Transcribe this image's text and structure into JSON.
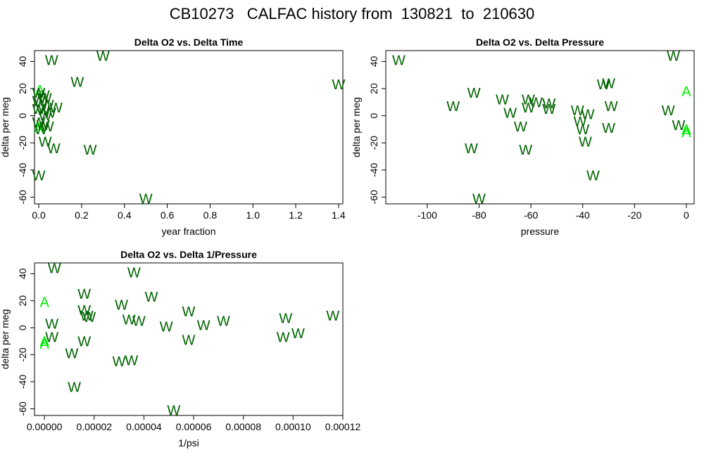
{
  "figure_title": "CB10273   CALFAC history from  130821  to  210630",
  "chart_data": [
    {
      "type": "scatter",
      "title": "Delta O2 vs. Delta Time",
      "xlabel": "year fraction",
      "ylabel": "delta per meg",
      "xlim": [
        -0.02,
        1.42
      ],
      "ylim": [
        -65,
        48
      ],
      "xticks": [
        "0.0",
        "0.2",
        "0.4",
        "0.6",
        "0.8",
        "1.0",
        "1.2",
        "1.4"
      ],
      "xtick_values": [
        0,
        0.2,
        0.4,
        0.6,
        0.8,
        1.0,
        1.2,
        1.4
      ],
      "yticks": [
        "-60",
        "-40",
        "-20",
        "0",
        "20",
        "40"
      ],
      "ytick_values": [
        -60,
        -40,
        -20,
        0,
        20,
        40
      ],
      "grid": false,
      "points": [
        {
          "x": 0.3,
          "y": 44,
          "label": "W"
        },
        {
          "x": 0.06,
          "y": 41,
          "label": "W"
        },
        {
          "x": 0.18,
          "y": 25,
          "label": "W"
        },
        {
          "x": 1.4,
          "y": 23,
          "label": "W"
        },
        {
          "x": 0.005,
          "y": 19,
          "label": "A"
        },
        {
          "x": 0.0,
          "y": 17,
          "label": "W"
        },
        {
          "x": 0.02,
          "y": 15,
          "label": "W"
        },
        {
          "x": 0.03,
          "y": 13,
          "label": "W"
        },
        {
          "x": 0.0,
          "y": 11,
          "label": "W"
        },
        {
          "x": 0.01,
          "y": 9,
          "label": "W"
        },
        {
          "x": 0.04,
          "y": 8,
          "label": "W"
        },
        {
          "x": 0.08,
          "y": 6,
          "label": "W"
        },
        {
          "x": 0.0,
          "y": 5,
          "label": "W"
        },
        {
          "x": 0.02,
          "y": 4,
          "label": "W"
        },
        {
          "x": 0.05,
          "y": 2,
          "label": "W"
        },
        {
          "x": 0.03,
          "y": 0,
          "label": "W"
        },
        {
          "x": 0.0,
          "y": -5,
          "label": "W"
        },
        {
          "x": 0.02,
          "y": -7,
          "label": "W"
        },
        {
          "x": 0.04,
          "y": -8,
          "label": "W"
        },
        {
          "x": 0.0,
          "y": -9,
          "label": "A"
        },
        {
          "x": 0.01,
          "y": -10,
          "label": "W"
        },
        {
          "x": 0.03,
          "y": -19,
          "label": "W"
        },
        {
          "x": 0.07,
          "y": -24,
          "label": "W"
        },
        {
          "x": 0.24,
          "y": -25,
          "label": "W"
        },
        {
          "x": 0.0,
          "y": -44,
          "label": "W"
        },
        {
          "x": 0.5,
          "y": -61,
          "label": "W"
        }
      ]
    },
    {
      "type": "scatter",
      "title": "Delta O2 vs. Delta Pressure",
      "xlabel": "pressure",
      "ylabel": "delta per meg",
      "xlim": [
        -116,
        3
      ],
      "ylim": [
        -65,
        48
      ],
      "xticks": [
        "-100",
        "-80",
        "-60",
        "-40",
        "-20",
        "0"
      ],
      "xtick_values": [
        -100,
        -80,
        -60,
        -40,
        -20,
        0
      ],
      "yticks": [
        "-60",
        "-40",
        "-20",
        "0",
        "20",
        "40"
      ],
      "ytick_values": [
        -60,
        -40,
        -20,
        0,
        20,
        40
      ],
      "grid": false,
      "points": [
        {
          "x": -111,
          "y": 41,
          "label": "W"
        },
        {
          "x": -5,
          "y": 44,
          "label": "W"
        },
        {
          "x": -32,
          "y": 23,
          "label": "W"
        },
        {
          "x": -30,
          "y": 24,
          "label": "W"
        },
        {
          "x": 0,
          "y": 18,
          "label": "A"
        },
        {
          "x": -82,
          "y": 17,
          "label": "W"
        },
        {
          "x": -71,
          "y": 12,
          "label": "W"
        },
        {
          "x": -61,
          "y": 12,
          "label": "W"
        },
        {
          "x": -58,
          "y": 10,
          "label": "W"
        },
        {
          "x": -53,
          "y": 9,
          "label": "W"
        },
        {
          "x": -90,
          "y": 7,
          "label": "W"
        },
        {
          "x": -61,
          "y": 6,
          "label": "W"
        },
        {
          "x": -53,
          "y": 5,
          "label": "W"
        },
        {
          "x": -29,
          "y": 7,
          "label": "W"
        },
        {
          "x": -42,
          "y": 4,
          "label": "W"
        },
        {
          "x": -7,
          "y": 4,
          "label": "W"
        },
        {
          "x": -68,
          "y": 2,
          "label": "W"
        },
        {
          "x": -38,
          "y": 1,
          "label": "W"
        },
        {
          "x": -41,
          "y": -4,
          "label": "W"
        },
        {
          "x": -64,
          "y": -8,
          "label": "W"
        },
        {
          "x": -30,
          "y": -9,
          "label": "W"
        },
        {
          "x": -3,
          "y": -7,
          "label": "W"
        },
        {
          "x": -40,
          "y": -10,
          "label": "W"
        },
        {
          "x": 0,
          "y": -10,
          "label": "A"
        },
        {
          "x": 0,
          "y": -12,
          "label": "A"
        },
        {
          "x": -39,
          "y": -19,
          "label": "W"
        },
        {
          "x": -83,
          "y": -24,
          "label": "W"
        },
        {
          "x": -62,
          "y": -25,
          "label": "W"
        },
        {
          "x": -36,
          "y": -44,
          "label": "W"
        },
        {
          "x": -80,
          "y": -61,
          "label": "W"
        }
      ]
    },
    {
      "type": "scatter",
      "title": "Delta O2 vs. Delta 1/Pressure",
      "xlabel": "1/psi",
      "ylabel": "delta per meg",
      "xlim": [
        -4e-06,
        0.00012
      ],
      "ylim": [
        -65,
        48
      ],
      "xticks": [
        "0.00000",
        "0.00002",
        "0.00004",
        "0.00006",
        "0.00008",
        "0.00010",
        "0.00012"
      ],
      "xtick_values": [
        0,
        2e-05,
        4e-05,
        6e-05,
        8e-05,
        0.0001,
        0.00012
      ],
      "yticks": [
        "-60",
        "-40",
        "-20",
        "0",
        "20",
        "40"
      ],
      "ytick_values": [
        -60,
        -40,
        -20,
        0,
        20,
        40
      ],
      "grid": false,
      "points": [
        {
          "x": 4e-06,
          "y": 44,
          "label": "W"
        },
        {
          "x": 3.6e-05,
          "y": 41,
          "label": "W"
        },
        {
          "x": 1.6e-05,
          "y": 25,
          "label": "W"
        },
        {
          "x": 4.3e-05,
          "y": 23,
          "label": "W"
        },
        {
          "x": 0.0,
          "y": 19,
          "label": "A"
        },
        {
          "x": 3.1e-05,
          "y": 17,
          "label": "W"
        },
        {
          "x": 1.6e-05,
          "y": 13,
          "label": "W"
        },
        {
          "x": 5.8e-05,
          "y": 12,
          "label": "W"
        },
        {
          "x": 1.7e-05,
          "y": 9,
          "label": "W"
        },
        {
          "x": 1.8e-05,
          "y": 8,
          "label": "W"
        },
        {
          "x": 0.000116,
          "y": 9,
          "label": "W"
        },
        {
          "x": 9.7e-05,
          "y": 7,
          "label": "W"
        },
        {
          "x": 3.4e-05,
          "y": 6,
          "label": "W"
        },
        {
          "x": 3.8e-05,
          "y": 5,
          "label": "W"
        },
        {
          "x": 7.2e-05,
          "y": 5,
          "label": "W"
        },
        {
          "x": 3e-06,
          "y": 3,
          "label": "W"
        },
        {
          "x": 4.9e-05,
          "y": 1,
          "label": "W"
        },
        {
          "x": 6.4e-05,
          "y": 2,
          "label": "W"
        },
        {
          "x": 0.000102,
          "y": -4,
          "label": "W"
        },
        {
          "x": 3e-06,
          "y": -7,
          "label": "W"
        },
        {
          "x": 9.6e-05,
          "y": -7,
          "label": "W"
        },
        {
          "x": 5.8e-05,
          "y": -9,
          "label": "W"
        },
        {
          "x": 1.6e-05,
          "y": -10,
          "label": "W"
        },
        {
          "x": 0.0,
          "y": -10,
          "label": "A"
        },
        {
          "x": 0.0,
          "y": -12,
          "label": "A"
        },
        {
          "x": 1.1e-05,
          "y": -19,
          "label": "W"
        },
        {
          "x": 3e-05,
          "y": -25,
          "label": "W"
        },
        {
          "x": 3.5e-05,
          "y": -24,
          "label": "W"
        },
        {
          "x": 1.2e-05,
          "y": -44,
          "label": "W"
        },
        {
          "x": 5.2e-05,
          "y": -61,
          "label": "W"
        }
      ]
    }
  ],
  "colors": {
    "W": "#006400",
    "A": "#00ee00"
  }
}
